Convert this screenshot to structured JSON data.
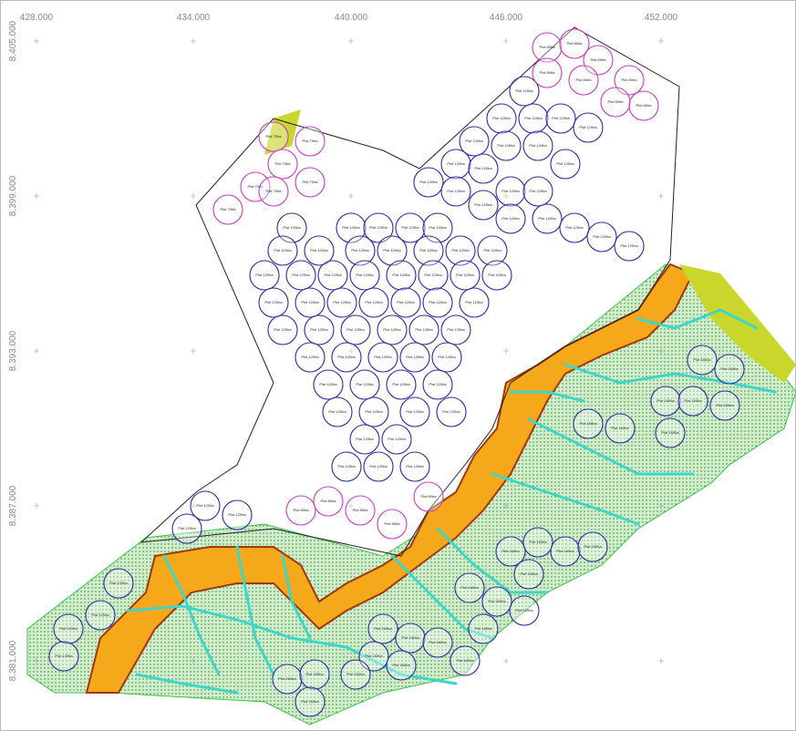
{
  "map": {
    "x_labels": [
      "428.000",
      "434.000",
      "440.000",
      "446.000",
      "452.000"
    ],
    "y_labels": [
      "8.405.000",
      "8.399.000",
      "8.393.000",
      "8.387.000",
      "8.381.000"
    ],
    "plot_groups": [
      {
        "color": "#2d2d9c",
        "labels": [
          "Plot 120ha",
          "Plot 120ha",
          "Plot 120ha",
          "Plot 120ha",
          "Plot 120ha",
          "Plot 120ha",
          "Plot 120ha",
          "Plot 120ha",
          "Plot 120ha",
          "Plot 120ha",
          "Plot 120ha",
          "Plot 120ha",
          "Plot 120ha",
          "Plot 120ha",
          "Plot 120ha",
          "Plot 120ha",
          "Plot 120ha",
          "Plot 120ha",
          "Plot 120ha",
          "Plot 120ha",
          "Plot 120ha",
          "Plot 120ha",
          "Plot 120ha",
          "Plot 120ha",
          "Plot 120ha",
          "Plot 120ha",
          "Plot 120ha",
          "Plot 120ha",
          "Plot 120ha",
          "Plot 120ha",
          "Plot 120ha",
          "Plot 120ha",
          "Plot 120ha",
          "Plot 120ha",
          "Plot 120ha",
          "Plot 120ha",
          "Plot 120ha",
          "Plot 120ha",
          "Plot 120ha",
          "Plot 120ha",
          "Plot 120ha",
          "Plot 120ha",
          "Plot 120ha",
          "Plot 120ha",
          "Plot 120ha",
          "Plot 120ha",
          "Plot 120ha",
          "Plot 120ha",
          "Plot 120ha",
          "Plot 120ha",
          "Plot 120ha",
          "Plot 120ha",
          "Plot 120ha",
          "Plot 120ha",
          "Plot 120ha",
          "Plot 120ha",
          "Plot 120ha",
          "Plot 120ha",
          "Plot 120ha",
          "Plot 120ha",
          "Plot 120ha",
          "Plot 120ha",
          "Plot 120ha",
          "Plot 120ha",
          "Plot 120ha",
          "Plot 120ha",
          "Plot 120ha",
          "Plot 120ha",
          "Plot 120ha",
          "Plot 120ha",
          "Plot 120ha",
          "Plot 120ha",
          "Plot 160ha",
          "Plot 160ha",
          "Plot 160ha",
          "Plot 160ha",
          "Plot 160ha",
          "Plot 160ha",
          "Plot 160ha",
          "Plot 160ha",
          "Plot 160ha",
          "Plot 160ha",
          "Plot 160ha",
          "Plot 160ha",
          "Plot 160ha",
          "Plot 160ha",
          "Plot 160ha",
          "Plot 160ha",
          "Plot 160ha",
          "Plot 160ha",
          "Plot 160ha",
          "Plot 160ha",
          "Plot 160ha",
          "Plot 160ha",
          "Plot 160ha",
          "Plot 160ha",
          "Plot 160ha",
          "Plot 160ha",
          "Plot 160ha",
          "Plot 120ha",
          "Plot 120ha",
          "Plot 120ha",
          "Plot 120ha",
          "Plot 120ha",
          "Plot 120ha",
          "Plot 120ha"
        ]
      },
      {
        "color": "#c23fc2",
        "labels": [
          "Plot 80ha",
          "Plot 80ha",
          "Plot 80ha",
          "Plot 80ha",
          "Plot 80ha",
          "Plot 80ha",
          "Plot 80ha",
          "Plot 80ha",
          "Plot 70ha",
          "Plot 70ha",
          "Plot 70ha",
          "Plot 70ha",
          "Plot 70ha",
          "Plot 70ha",
          "Plot 70ha",
          "Plot 80ha",
          "Plot 80ha",
          "Plot 80ha",
          "Plot 80ha",
          "Plot 80ha"
        ]
      }
    ]
  }
}
